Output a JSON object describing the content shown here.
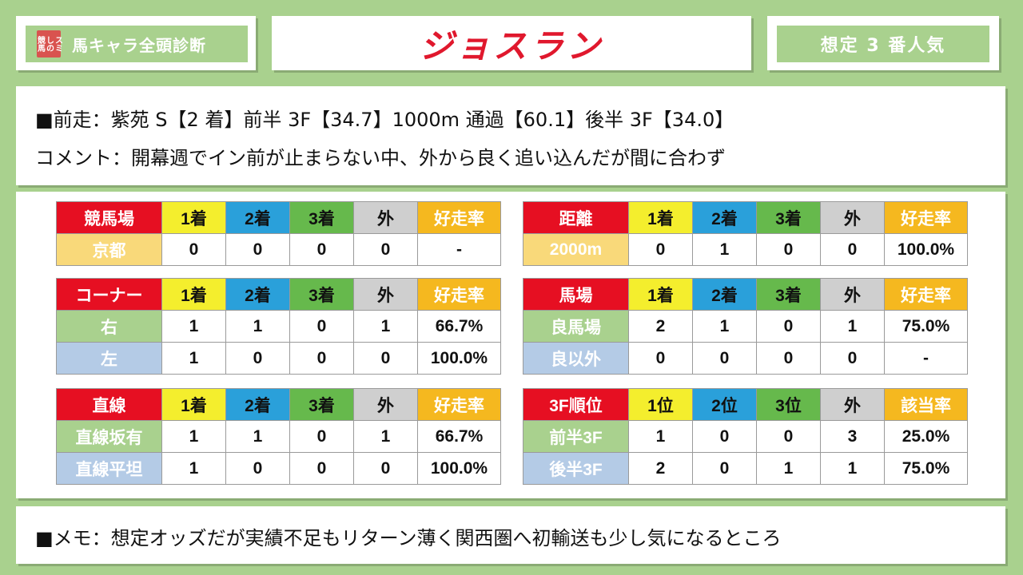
{
  "header": {
    "stamp_text": "スミしの競馬",
    "badge": "馬キャラ全頭診断",
    "horse_name": "ジョスラン",
    "popularity": "想定 3 番人気"
  },
  "info": {
    "previous_race": "■前走：紫苑 S【2 着】前半 3F【34.7】1000m 通過【60.1】後半 3F【34.0】",
    "comment": "コメント：開幕週でイン前が止まらない中、外から良く追い込んだが間に合わず"
  },
  "tables": {
    "course": {
      "headers": [
        "競馬場",
        "1着",
        "2着",
        "3着",
        "外",
        "好走率"
      ],
      "rows": [
        [
          "京都",
          "0",
          "0",
          "0",
          "0",
          "-"
        ]
      ]
    },
    "distance": {
      "headers": [
        "距離",
        "1着",
        "2着",
        "3着",
        "外",
        "好走率"
      ],
      "rows": [
        [
          "2000m",
          "0",
          "1",
          "0",
          "0",
          "100.0%"
        ]
      ]
    },
    "corner": {
      "headers": [
        "コーナー",
        "1着",
        "2着",
        "3着",
        "外",
        "好走率"
      ],
      "rows": [
        [
          "右",
          "1",
          "1",
          "0",
          "1",
          "66.7%"
        ],
        [
          "左",
          "1",
          "0",
          "0",
          "0",
          "100.0%"
        ]
      ]
    },
    "going": {
      "headers": [
        "馬場",
        "1着",
        "2着",
        "3着",
        "外",
        "好走率"
      ],
      "rows": [
        [
          "良馬場",
          "2",
          "1",
          "0",
          "1",
          "75.0%"
        ],
        [
          "良以外",
          "0",
          "0",
          "0",
          "0",
          "-"
        ]
      ]
    },
    "straight": {
      "headers": [
        "直線",
        "1着",
        "2着",
        "3着",
        "外",
        "好走率"
      ],
      "rows": [
        [
          "直線坂有",
          "1",
          "1",
          "0",
          "1",
          "66.7%"
        ],
        [
          "直線平坦",
          "1",
          "0",
          "0",
          "0",
          "100.0%"
        ]
      ]
    },
    "rank3f": {
      "headers": [
        "3F順位",
        "1位",
        "2位",
        "3位",
        "外",
        "該当率"
      ],
      "rows": [
        [
          "前半3F",
          "1",
          "0",
          "0",
          "3",
          "25.0%"
        ],
        [
          "後半3F",
          "2",
          "0",
          "1",
          "1",
          "75.0%"
        ]
      ]
    }
  },
  "memo": "■メモ：想定オッズだが実績不足もリターン薄く関西圏へ初輸送も少し気になるところ"
}
